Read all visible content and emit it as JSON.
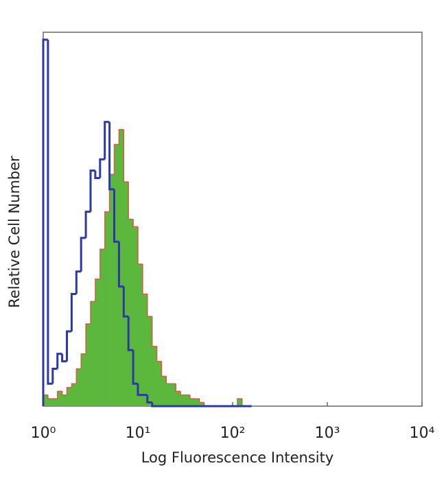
{
  "chart_data": {
    "type": "histogram",
    "xlabel": "Log Fluorescence Intensity",
    "ylabel": "Relative Cell Number",
    "xscale": "log",
    "xlim": [
      1,
      10000
    ],
    "xticks": [
      {
        "value": 1,
        "label": "10⁰"
      },
      {
        "value": 10,
        "label": "10¹"
      },
      {
        "value": 100,
        "label": "10²"
      },
      {
        "value": 1000,
        "label": "10³"
      },
      {
        "value": 10000,
        "label": "10⁴"
      }
    ],
    "ylim": [
      0,
      100
    ],
    "bins": [
      1,
      1.122,
      1.259,
      1.413,
      1.585,
      1.778,
      1.995,
      2.239,
      2.512,
      2.818,
      3.162,
      3.548,
      3.981,
      4.467,
      5.012,
      5.623,
      6.31,
      7.079,
      7.943,
      8.913,
      10,
      11.22,
      12.59,
      14.13,
      15.85,
      17.78,
      19.95,
      22.39,
      25.12,
      28.18,
      31.62,
      35.48,
      39.81,
      44.67,
      50.12,
      56.23,
      63.1,
      70.79,
      79.43,
      89.13,
      100,
      112.2,
      125.9,
      141.3,
      158.5
    ],
    "series": [
      {
        "color": "#5cb83c",
        "edge_color": "#e8403a",
        "style": "filled",
        "values": [
          3,
          2,
          2,
          4,
          3,
          5,
          6,
          10,
          14,
          22,
          28,
          34,
          42,
          52,
          62,
          70,
          74,
          60,
          50,
          48,
          38,
          30,
          24,
          16,
          12,
          8,
          6,
          6,
          4,
          3,
          3,
          2,
          2,
          1,
          0,
          0,
          0,
          0,
          0,
          0,
          0,
          2,
          0,
          0
        ]
      },
      {
        "color": "#2b38a8",
        "style": "outline",
        "values": [
          98,
          6,
          10,
          14,
          12,
          20,
          30,
          36,
          45,
          52,
          63,
          61,
          66,
          76,
          58,
          44,
          32,
          24,
          15,
          6,
          3,
          3,
          1,
          0,
          0,
          0,
          0,
          0,
          0,
          0,
          0,
          0,
          0,
          0,
          0,
          0,
          0,
          0,
          0,
          0,
          0,
          0,
          0,
          0
        ]
      }
    ]
  }
}
